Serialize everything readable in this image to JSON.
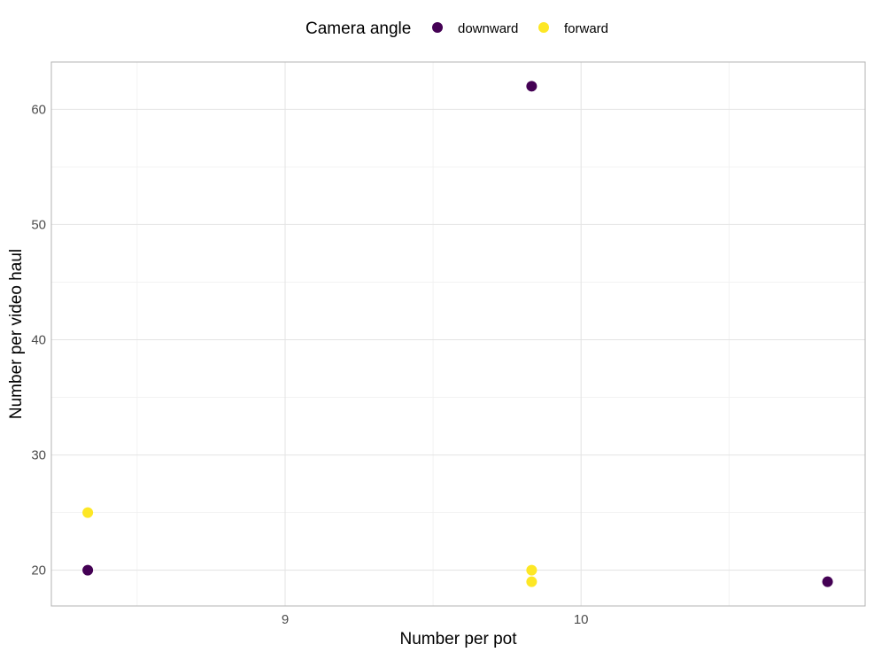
{
  "chart_data": {
    "type": "scatter",
    "title": "",
    "xlabel": "Number per pot",
    "ylabel": "Number per video haul",
    "xlim": [
      8.21,
      10.96
    ],
    "ylim": [
      16.9,
      64.1
    ],
    "x_ticks": [
      9,
      10
    ],
    "y_ticks": [
      20,
      30,
      40,
      50,
      60
    ],
    "x_tick_labels": [
      "9",
      "10"
    ],
    "y_tick_labels": [
      "20",
      "30",
      "40",
      "50",
      "60"
    ],
    "grid": true,
    "legend": {
      "title": "Camera angle",
      "placement": "top",
      "entries": [
        {
          "label": "downward",
          "color": "#440154"
        },
        {
          "label": "forward",
          "color": "#FDE725"
        }
      ]
    },
    "series": [
      {
        "name": "downward",
        "color": "#440154",
        "points": [
          {
            "x": 9.833,
            "y": 62
          },
          {
            "x": 8.333,
            "y": 20
          },
          {
            "x": 10.833,
            "y": 19
          }
        ]
      },
      {
        "name": "forward",
        "color": "#FDE725",
        "points": [
          {
            "x": 8.333,
            "y": 25
          },
          {
            "x": 9.833,
            "y": 20
          },
          {
            "x": 9.833,
            "y": 19
          }
        ]
      }
    ]
  }
}
